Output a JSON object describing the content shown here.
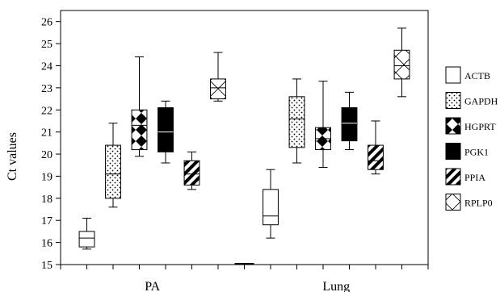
{
  "chart_data": {
    "type": "box",
    "ylabel": "Ct values",
    "ylim": [
      15,
      26.5
    ],
    "yticks": [
      15,
      16,
      17,
      18,
      19,
      20,
      21,
      22,
      23,
      24,
      25,
      26
    ],
    "groups": [
      "PA",
      "Lung"
    ],
    "grid": false,
    "legend_position": "right",
    "series": [
      {
        "name": "ACTB",
        "pattern": "white",
        "boxes": [
          {
            "group": "PA",
            "min": 15.7,
            "q1": 15.8,
            "median": 16.2,
            "q3": 16.5,
            "max": 17.1
          },
          {
            "group": "Lung",
            "min": 16.2,
            "q1": 16.8,
            "median": 17.2,
            "q3": 18.4,
            "max": 19.3
          }
        ]
      },
      {
        "name": "GAPDH",
        "pattern": "dots",
        "boxes": [
          {
            "group": "PA",
            "min": 17.6,
            "q1": 18.0,
            "median": 19.1,
            "q3": 20.4,
            "max": 21.4
          },
          {
            "group": "Lung",
            "min": 19.6,
            "q1": 20.3,
            "median": 21.6,
            "q3": 22.6,
            "max": 23.4
          }
        ]
      },
      {
        "name": "HGPRT",
        "pattern": "diamonds",
        "boxes": [
          {
            "group": "PA",
            "min": 19.9,
            "q1": 20.2,
            "median": 21.3,
            "q3": 22.0,
            "max": 24.4
          },
          {
            "group": "Lung",
            "min": 19.4,
            "q1": 20.2,
            "median": 20.7,
            "q3": 21.2,
            "max": 23.3
          }
        ]
      },
      {
        "name": "PGK1",
        "pattern": "black",
        "boxes": [
          {
            "group": "PA",
            "min": 19.6,
            "q1": 20.1,
            "median": 21.0,
            "q3": 22.1,
            "max": 22.4
          },
          {
            "group": "Lung",
            "min": 20.2,
            "q1": 20.6,
            "median": 21.4,
            "q3": 22.1,
            "max": 22.8
          }
        ]
      },
      {
        "name": "PPIA",
        "pattern": "stripes",
        "boxes": [
          {
            "group": "PA",
            "min": 18.4,
            "q1": 18.6,
            "median": 19.1,
            "q3": 19.7,
            "max": 20.1
          },
          {
            "group": "Lung",
            "min": 19.1,
            "q1": 19.3,
            "median": 19.7,
            "q3": 20.4,
            "max": 21.5
          }
        ]
      },
      {
        "name": "RPLP0",
        "pattern": "crosshatch",
        "boxes": [
          {
            "group": "PA",
            "min": 22.4,
            "q1": 22.5,
            "median": 23.0,
            "q3": 23.4,
            "max": 24.6
          },
          {
            "group": "Lung",
            "min": 22.6,
            "q1": 23.4,
            "median": 24.0,
            "q3": 24.7,
            "max": 25.7
          }
        ]
      }
    ],
    "legend_entries": [
      "ACTB",
      "GAPDH",
      "HGPRT",
      "PGK1",
      "PPIA",
      "RPLP0"
    ]
  }
}
